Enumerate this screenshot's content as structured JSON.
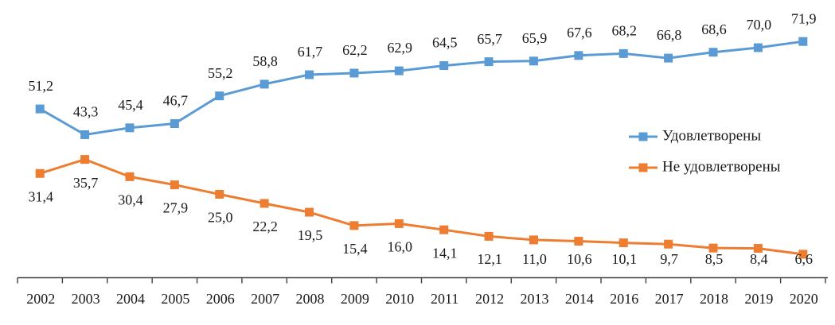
{
  "chart_data": {
    "type": "line",
    "categories": [
      "2002",
      "2003",
      "2004",
      "2005",
      "2006",
      "2007",
      "2008",
      "2009",
      "2010",
      "2011",
      "2012",
      "2013",
      "2014",
      "2016",
      "2017",
      "2018",
      "2019",
      "2020"
    ],
    "series": [
      {
        "name": "Удовлетворены",
        "color": "#5B9BD5",
        "values": [
          51.2,
          43.3,
          45.4,
          46.7,
          55.2,
          58.8,
          61.7,
          62.2,
          62.9,
          64.5,
          65.7,
          65.9,
          67.6,
          68.2,
          66.8,
          68.6,
          70.0,
          71.9
        ],
        "value_labels": [
          "51,2",
          "43,3",
          "45,4",
          "46,7",
          "55,2",
          "58,8",
          "61,7",
          "62,2",
          "62,9",
          "64,5",
          "65,7",
          "65,9",
          "67,6",
          "68,2",
          "66,8",
          "68,6",
          "70,0",
          "71,9"
        ]
      },
      {
        "name": "Не удовлетворены",
        "color": "#ED7D31",
        "values": [
          31.4,
          35.7,
          30.4,
          27.9,
          25.0,
          22.2,
          19.5,
          15.4,
          16.0,
          14.1,
          12.1,
          11.0,
          10.6,
          10.1,
          9.7,
          8.5,
          8.4,
          6.6
        ],
        "value_labels": [
          "31,4",
          "35,7",
          "30,4",
          "27,9",
          "25,0",
          "22,2",
          "19,5",
          "15,4",
          "16,0",
          "14,1",
          "12,1",
          "11,0",
          "10,6",
          "10,1",
          "9,7",
          "8,5",
          "8,4",
          "6,6"
        ]
      }
    ],
    "ylim": [
      0,
      80
    ],
    "grid": false,
    "legend": "right",
    "axis_color": "#404040"
  }
}
